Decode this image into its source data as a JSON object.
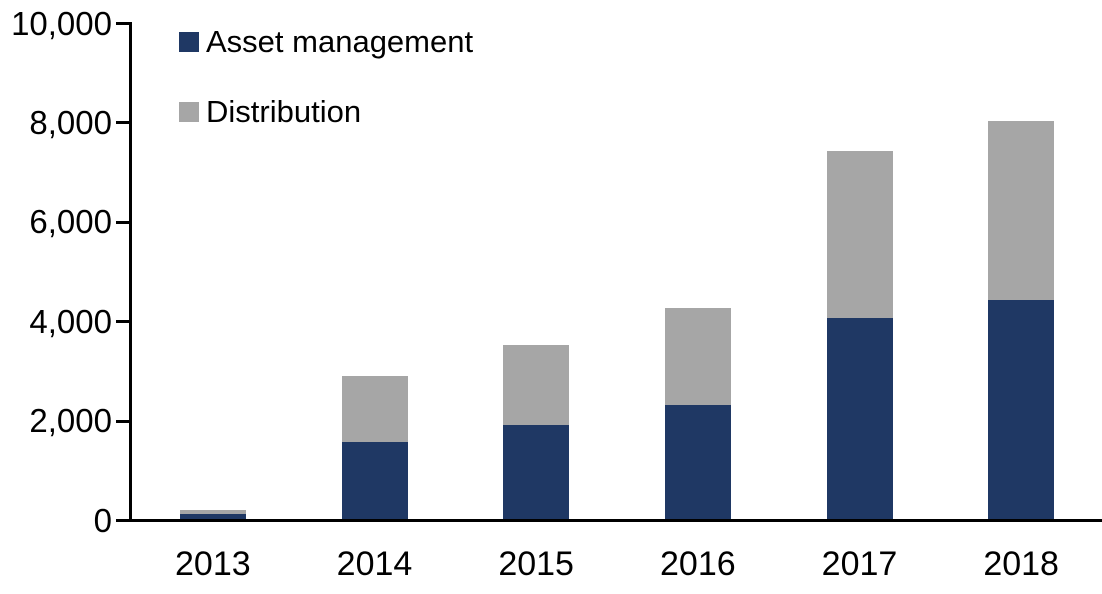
{
  "chart_data": {
    "type": "bar",
    "stacked": true,
    "title": "",
    "xlabel": "",
    "ylabel": "",
    "categories": [
      "2013",
      "2014",
      "2015",
      "2016",
      "2017",
      "2018"
    ],
    "series": [
      {
        "name": "Asset management",
        "color": "#1F3864",
        "values": [
          100,
          1550,
          1890,
          2300,
          4050,
          4400
        ]
      },
      {
        "name": "Distribution",
        "color": "#A6A6A6",
        "values": [
          80,
          1320,
          1610,
          1950,
          3350,
          3600
        ]
      }
    ],
    "totals": [
      180,
      2870,
      3500,
      4250,
      7400,
      8000
    ],
    "ylim": [
      0,
      10000
    ],
    "ytick_values": [
      0,
      2000,
      4000,
      6000,
      8000,
      10000
    ],
    "ytick_labels": [
      "0",
      "2,000",
      "4,000",
      "6,000",
      "8,000",
      "10,000"
    ],
    "grid": false,
    "legend_position": "top-left-inside"
  },
  "colors": {
    "axis": "#000000",
    "text": "#000000",
    "background": "#FFFFFF"
  }
}
